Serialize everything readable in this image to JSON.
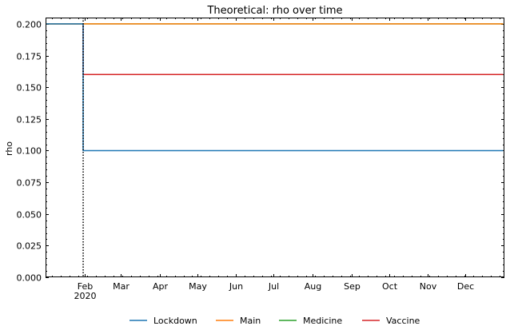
{
  "chart_data": {
    "type": "line",
    "title": "Theoretical: rho over time",
    "xlabel": "",
    "ylabel": "rho",
    "x_axis_type": "date",
    "xlim": [
      "2020-01-01",
      "2020-12-31"
    ],
    "ylim": [
      0,
      0.205
    ],
    "x_ticks": [
      {
        "date": "2020-02-01",
        "label": "Feb",
        "sublabel": "2020"
      },
      {
        "date": "2020-03-01",
        "label": "Mar"
      },
      {
        "date": "2020-04-01",
        "label": "Apr"
      },
      {
        "date": "2020-05-01",
        "label": "May"
      },
      {
        "date": "2020-06-01",
        "label": "Jun"
      },
      {
        "date": "2020-07-01",
        "label": "Jul"
      },
      {
        "date": "2020-08-01",
        "label": "Aug"
      },
      {
        "date": "2020-09-01",
        "label": "Sep"
      },
      {
        "date": "2020-10-01",
        "label": "Oct"
      },
      {
        "date": "2020-11-01",
        "label": "Nov"
      },
      {
        "date": "2020-12-01",
        "label": "Dec"
      }
    ],
    "y_ticks": [
      {
        "value": 0.0,
        "label": "0.000"
      },
      {
        "value": 0.025,
        "label": "0.025"
      },
      {
        "value": 0.05,
        "label": "0.050"
      },
      {
        "value": 0.075,
        "label": "0.075"
      },
      {
        "value": 0.1,
        "label": "0.100"
      },
      {
        "value": 0.125,
        "label": "0.125"
      },
      {
        "value": 0.15,
        "label": "0.150"
      },
      {
        "value": 0.175,
        "label": "0.175"
      },
      {
        "value": 0.2,
        "label": "0.200"
      }
    ],
    "vline": {
      "date": "2020-01-31",
      "style": "dotted",
      "color": "#000000"
    },
    "series": [
      {
        "name": "Lockdown",
        "color": "#1f77b4",
        "points": [
          [
            "2020-01-01",
            0.2
          ],
          [
            "2020-01-31",
            0.2
          ],
          [
            "2020-01-31",
            0.1
          ],
          [
            "2020-12-31",
            0.1
          ]
        ]
      },
      {
        "name": "Main",
        "color": "#ff7f0e",
        "points": [
          [
            "2020-01-01",
            0.2
          ],
          [
            "2020-12-31",
            0.2
          ]
        ]
      },
      {
        "name": "Medicine",
        "color": "#2ca02c",
        "points": [
          [
            "2020-01-01",
            0.2
          ],
          [
            "2020-12-31",
            0.2
          ]
        ]
      },
      {
        "name": "Vaccine",
        "color": "#d62728",
        "points": [
          [
            "2020-01-01",
            0.2
          ],
          [
            "2020-01-31",
            0.2
          ],
          [
            "2020-01-31",
            0.16
          ],
          [
            "2020-12-31",
            0.16
          ]
        ]
      }
    ],
    "legend_position": "bottom-center",
    "grid": false
  }
}
